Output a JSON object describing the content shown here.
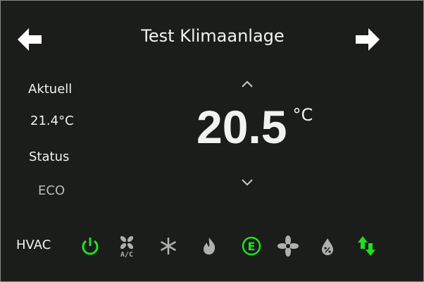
{
  "header": {
    "title": "Test Klimaanlage",
    "prev_icon": "arrow-left-icon",
    "next_icon": "arrow-right-icon"
  },
  "left": {
    "current_label": "Aktuell",
    "current_value": "21.4°C",
    "status_label": "Status",
    "status_value": "ECO"
  },
  "setpoint": {
    "value": "20.5",
    "unit": "°C"
  },
  "hvac": {
    "label": "HVAC",
    "modes": [
      {
        "icon": "power-icon",
        "active": true
      },
      {
        "icon": "ac-fan-icon",
        "text": "A/C",
        "active": false
      },
      {
        "icon": "snowflake-icon",
        "active": false
      },
      {
        "icon": "flame-icon",
        "active": false
      },
      {
        "icon": "eco-icon",
        "text": "E",
        "active": true
      },
      {
        "icon": "fan-icon",
        "active": false
      },
      {
        "icon": "humidity-drop-icon",
        "active": false
      },
      {
        "icon": "arrows-up-down-icon",
        "active": true
      }
    ]
  },
  "colors": {
    "active": "#22dd22",
    "inactive": "#b0b0b0",
    "background": "#1a1d1a"
  }
}
